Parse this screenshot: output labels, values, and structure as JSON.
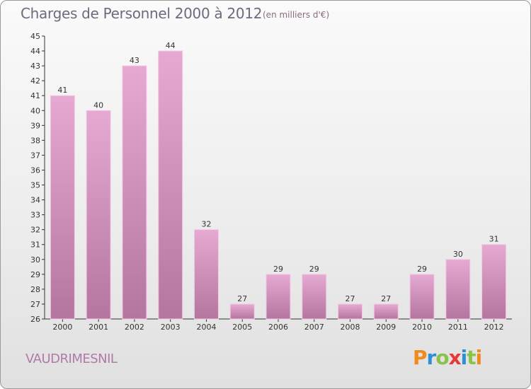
{
  "chart_data": {
    "type": "bar",
    "title": "Charges de Personnel 2000 à 2012",
    "subtitle": "(en milliers d'€)",
    "categories": [
      "2000",
      "2001",
      "2002",
      "2003",
      "2004",
      "2005",
      "2006",
      "2007",
      "2008",
      "2009",
      "2010",
      "2011",
      "2012"
    ],
    "values": [
      41,
      40,
      43,
      44,
      32,
      27,
      29,
      29,
      27,
      27,
      29,
      30,
      31
    ],
    "ylim": [
      26,
      45
    ],
    "yticks": [
      26,
      27,
      28,
      29,
      30,
      31,
      32,
      33,
      34,
      35,
      36,
      37,
      38,
      39,
      40,
      41,
      42,
      43,
      44,
      45
    ],
    "grid": false,
    "bar_color": "#c77fb0"
  },
  "footer": {
    "place": "VAUDRIMESNIL"
  },
  "brand": {
    "letters": [
      "P",
      "r",
      "o",
      "x",
      "i",
      "t",
      "i"
    ],
    "colors": [
      "#f08a1c",
      "#2f8fd6",
      "#8bc34a",
      "#e53935",
      "#2f8fd6",
      "#8bc34a",
      "#f08a1c"
    ]
  }
}
